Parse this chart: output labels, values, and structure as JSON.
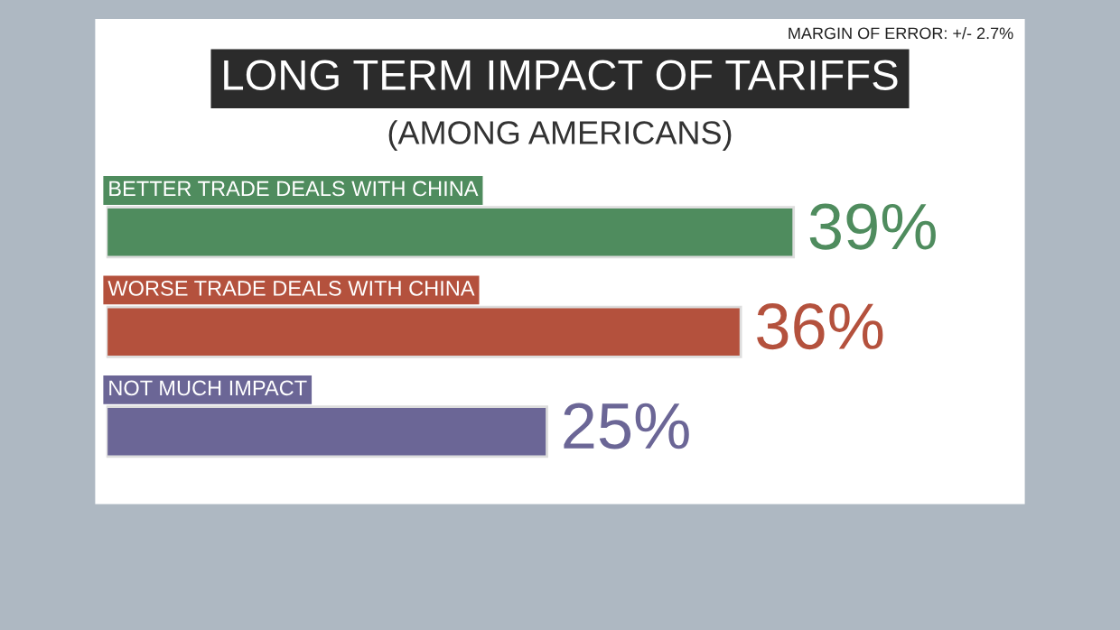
{
  "chart_data": {
    "type": "bar",
    "orientation": "horizontal",
    "title": "LONG TERM IMPACT OF TARIFFS",
    "subtitle": "(AMONG AMERICANS)",
    "categories": [
      "BETTER TRADE DEALS WITH CHINA",
      "WORSE TRADE DEALS WITH CHINA",
      "NOT MUCH IMPACT"
    ],
    "values": [
      39,
      36,
      25
    ],
    "colors": [
      "#4f8c5e",
      "#b4513d",
      "#6b6696"
    ],
    "value_labels": [
      "39%",
      "36%",
      "25%"
    ],
    "annotations": [
      "MARGIN OF ERROR: +/- 2.7%"
    ]
  }
}
